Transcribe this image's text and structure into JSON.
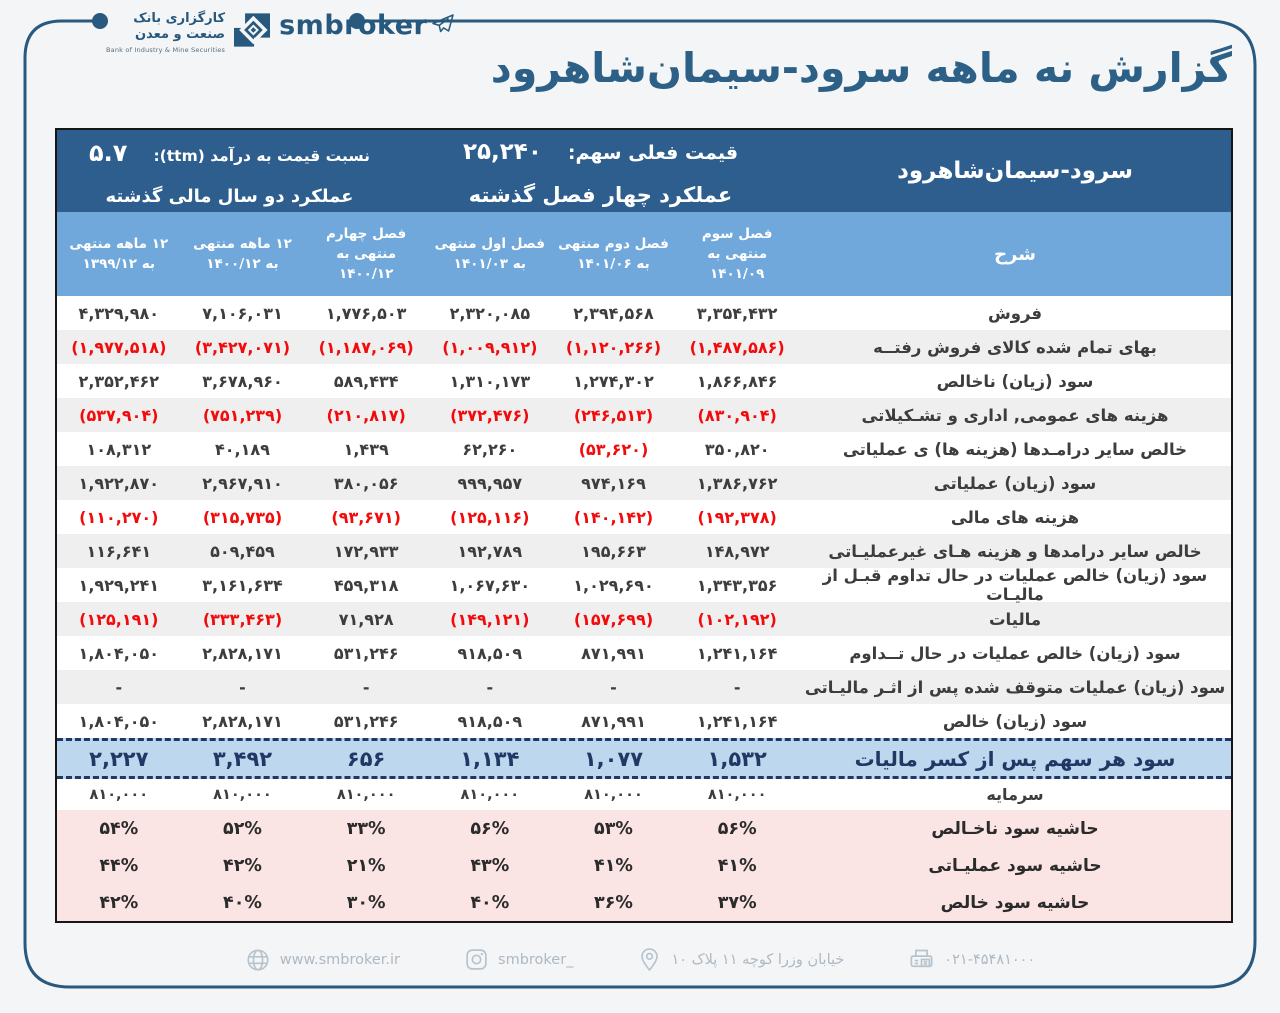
{
  "brand": {
    "logo_fa_line1": "کارگزاری بانک",
    "logo_fa_line2": "صنعت و معدن",
    "logo_en": "Bank of Industry & Mine Securities",
    "wordmark": "smbroker"
  },
  "page_title": "گزارش نه ماهه سرود-سیمان‌شاهرود",
  "info_bar": {
    "company": "سرود-سیمان‌شاهرود",
    "price_label": "قیمت فعلی سهم:",
    "price_value": "۲۵,۲۴۰",
    "quarters_caption": "عملکرد چهار فصل گذشته",
    "pe_label": "نسبت قیمت به درآمد (ttm):",
    "pe_value": "۵.۷",
    "years_caption": "عملکرد دو سال مالی گذشته"
  },
  "table": {
    "desc_header": "شرح",
    "period_headers": [
      [
        "فصل سوم",
        "منتهی به",
        "۱۴۰۱/۰۹"
      ],
      [
        "فصل دوم منتهی",
        "به ۱۴۰۱/۰۶"
      ],
      [
        "فصل اول منتهی",
        "به ۱۴۰۱/۰۳"
      ],
      [
        "فصل چهارم",
        "منتهی به",
        "۱۴۰۰/۱۲"
      ],
      [
        "۱۲ ماهه منتهی",
        "به ۱۴۰۰/۱۲"
      ],
      [
        "۱۲ ماهه منتهی",
        "به ۱۳۹۹/۱۲"
      ]
    ],
    "rows": [
      {
        "kind": "data",
        "label": "فروش",
        "values": [
          "۳,۳۵۴,۴۳۲",
          "۲,۳۹۴,۵۶۸",
          "۲,۳۲۰,۰۸۵",
          "۱,۷۷۶,۵۰۳",
          "۷,۱۰۶,۰۳۱",
          "۴,۳۲۹,۹۸۰"
        ]
      },
      {
        "kind": "data",
        "label": "بهای تمام شده کالای فروش رفتــه",
        "values": [
          "(۱,۴۸۷,۵۸۶)",
          "(۱,۱۲۰,۲۶۶)",
          "(۱,۰۰۹,۹۱۲)",
          "(۱,۱۸۷,۰۶۹)",
          "(۳,۴۲۷,۰۷۱)",
          "(۱,۹۷۷,۵۱۸)"
        ]
      },
      {
        "kind": "data",
        "label": "سود (زیان) ناخالص",
        "values": [
          "۱,۸۶۶,۸۴۶",
          "۱,۲۷۴,۳۰۲",
          "۱,۳۱۰,۱۷۳",
          "۵۸۹,۴۳۴",
          "۳,۶۷۸,۹۶۰",
          "۲,۳۵۲,۴۶۲"
        ]
      },
      {
        "kind": "data",
        "label": "هزینه های عمومی, اداری و تشـکیلاتی",
        "values": [
          "(۸۳۰,۹۰۴)",
          "(۲۴۶,۵۱۳)",
          "(۳۷۲,۴۷۶)",
          "(۲۱۰,۸۱۷)",
          "(۷۵۱,۲۳۹)",
          "(۵۳۷,۹۰۴)"
        ]
      },
      {
        "kind": "data",
        "label": "خالص سایر درامـدها (هزینه ها) ی  عملیاتی",
        "values": [
          "۳۵۰,۸۲۰",
          "(۵۳,۶۲۰)",
          "۶۲,۲۶۰",
          "۱,۴۳۹",
          "۴۰,۱۸۹",
          "۱۰۸,۳۱۲"
        ]
      },
      {
        "kind": "data",
        "label": "سود (زیان) عملیاتی",
        "values": [
          "۱,۳۸۶,۷۶۲",
          "۹۷۴,۱۶۹",
          "۹۹۹,۹۵۷",
          "۳۸۰,۰۵۶",
          "۲,۹۶۷,۹۱۰",
          "۱,۹۲۲,۸۷۰"
        ]
      },
      {
        "kind": "data",
        "label": "هزینه های مالی",
        "values": [
          "(۱۹۲,۳۷۸)",
          "(۱۴۰,۱۴۲)",
          "(۱۲۵,۱۱۶)",
          "(۹۳,۶۷۱)",
          "(۳۱۵,۷۳۵)",
          "(۱۱۰,۲۷۰)"
        ]
      },
      {
        "kind": "data",
        "label": "خالص سایر درامدها و هزینه هـای غیرعملیـاتی",
        "values": [
          "۱۴۸,۹۷۲",
          "۱۹۵,۶۶۳",
          "۱۹۲,۷۸۹",
          "۱۷۲,۹۳۳",
          "۵۰۹,۴۵۹",
          "۱۱۶,۶۴۱"
        ]
      },
      {
        "kind": "data",
        "label": "سود (زیان) خالص عملیات در حال تداوم قبـل از مالیـات",
        "values": [
          "۱,۳۴۳,۳۵۶",
          "۱,۰۲۹,۶۹۰",
          "۱,۰۶۷,۶۳۰",
          "۴۵۹,۳۱۸",
          "۳,۱۶۱,۶۳۴",
          "۱,۹۲۹,۲۴۱"
        ]
      },
      {
        "kind": "data",
        "label": "مالیات",
        "values": [
          "(۱۰۲,۱۹۲)",
          "(۱۵۷,۶۹۹)",
          "(۱۴۹,۱۲۱)",
          "۷۱,۹۲۸",
          "(۳۳۳,۴۶۳)",
          "(۱۲۵,۱۹۱)"
        ]
      },
      {
        "kind": "data",
        "label": "سود (زیان) خالص عملیات در حال تــداوم",
        "values": [
          "۱,۲۴۱,۱۶۴",
          "۸۷۱,۹۹۱",
          "۹۱۸,۵۰۹",
          "۵۳۱,۲۴۶",
          "۲,۸۲۸,۱۷۱",
          "۱,۸۰۴,۰۵۰"
        ]
      },
      {
        "kind": "data",
        "label": "سود (زیان) عملیات متوقف شده پس از اثـر مالیـاتی",
        "values": [
          "-",
          "-",
          "-",
          "-",
          "-",
          "-"
        ]
      },
      {
        "kind": "data",
        "label": "سود (زیان) خالص",
        "values": [
          "۱,۲۴۱,۱۶۴",
          "۸۷۱,۹۹۱",
          "۹۱۸,۵۰۹",
          "۵۳۱,۲۴۶",
          "۲,۸۲۸,۱۷۱",
          "۱,۸۰۴,۰۵۰"
        ]
      },
      {
        "kind": "eps",
        "label": "سود هر سهم پس از کسر مالیات",
        "values": [
          "۱,۵۳۲",
          "۱,۰۷۷",
          "۱,۱۳۴",
          "۶۵۶",
          "۳,۴۹۲",
          "۲,۲۲۷"
        ]
      },
      {
        "kind": "capital",
        "label": "سرمایه",
        "values": [
          "۸۱۰,۰۰۰",
          "۸۱۰,۰۰۰",
          "۸۱۰,۰۰۰",
          "۸۱۰,۰۰۰",
          "۸۱۰,۰۰۰",
          "۸۱۰,۰۰۰"
        ]
      },
      {
        "kind": "margin",
        "label": "حاشیه سود ناخـالص",
        "values": [
          "۵۶%",
          "۵۳%",
          "۵۶%",
          "۳۳%",
          "۵۲%",
          "۵۴%"
        ]
      },
      {
        "kind": "margin",
        "label": "حاشیه سود عملیـاتی",
        "values": [
          "۴۱%",
          "۴۱%",
          "۴۳%",
          "۲۱%",
          "۴۲%",
          "۴۴%"
        ]
      },
      {
        "kind": "margin",
        "label": "حاشیه سود خالص",
        "values": [
          "۳۷%",
          "۳۶%",
          "۴۰%",
          "۳۰%",
          "۴۰%",
          "۴۲%"
        ]
      }
    ]
  },
  "footer": {
    "website": "www.smbroker.ir",
    "instagram": "smbroker_",
    "address": "خیابان وزرا کوچه ۱۱ پلاک ۱۰",
    "phone": "۰۲۱-۴۵۴۸۱۰۰۰"
  },
  "colors": {
    "frame": "#29597f",
    "title_ink": "#2d6086",
    "bar_dark": "#2d5e8e",
    "bar_light": "#71a8db",
    "eps_bg": "#bdd7ee",
    "eps_ink": "#1f3864",
    "negative_red": "#f30a0a",
    "zebra_gray": "#efefef",
    "margin_pink": "#fbe5e4"
  }
}
